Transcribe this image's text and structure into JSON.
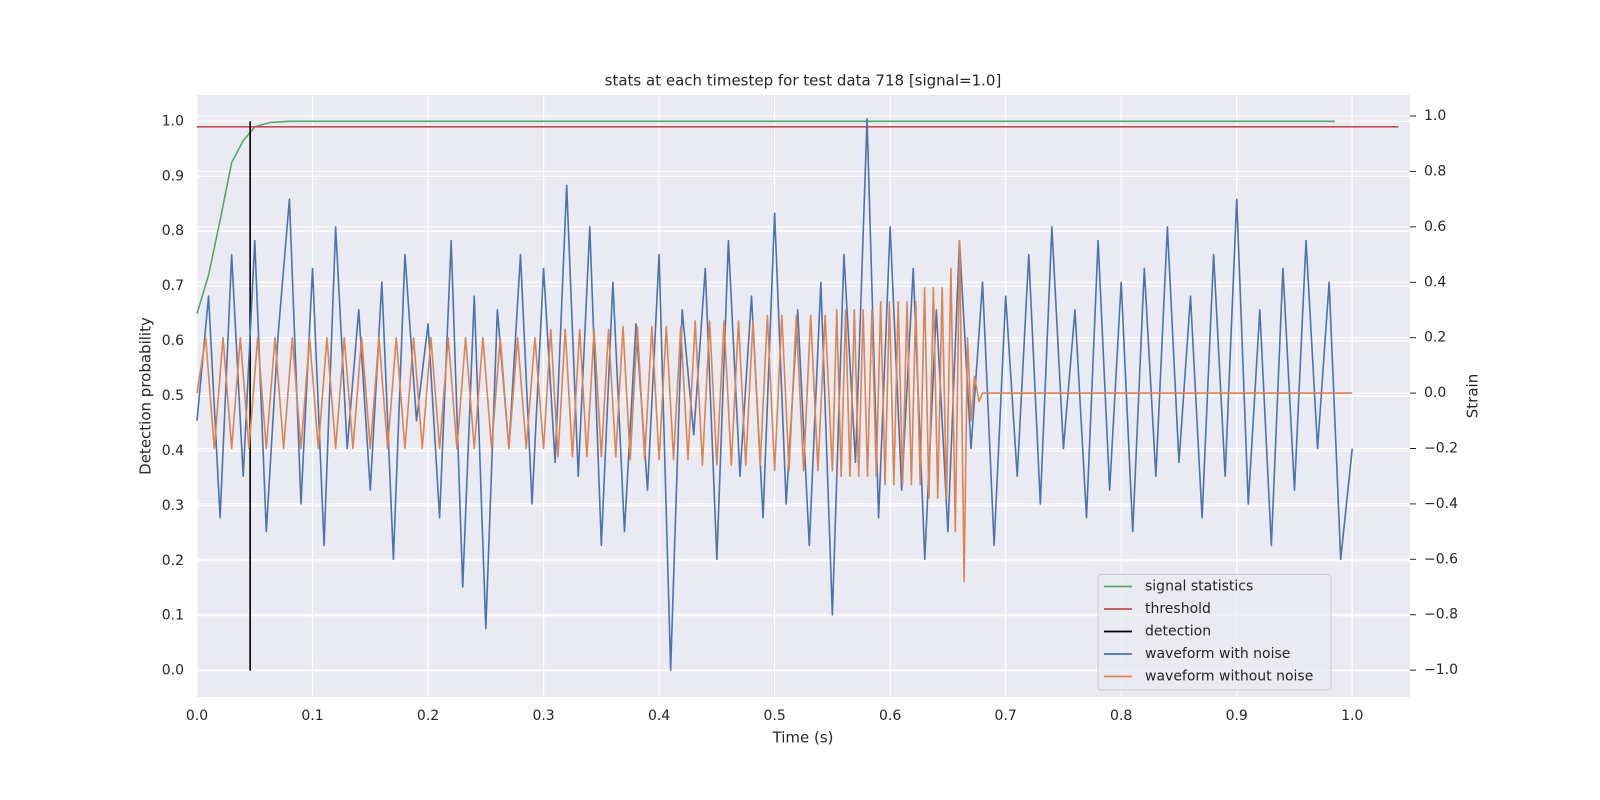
{
  "chart_data": {
    "type": "line",
    "title": "stats at each timestep for test data 718 [signal=1.0]",
    "x_label": "Time (s)",
    "y_label": "Detection probability",
    "y2_label": "Strain",
    "xlim": [
      0,
      1.05
    ],
    "xticks": [
      {
        "value": 0,
        "label": "0.0"
      },
      0.1,
      0.2,
      0.3,
      0.4,
      0.5,
      0.6,
      0.7,
      0.8,
      0.9,
      {
        "value": 1,
        "label": "1.0"
      }
    ],
    "ylim": [
      -0.048,
      1.048
    ],
    "yticks": [
      {
        "value": 0,
        "label": "0.0"
      },
      0.1,
      0.2,
      0.3,
      0.4,
      0.5,
      0.6,
      0.7,
      0.8,
      0.9,
      {
        "value": 1,
        "label": "1.0"
      }
    ],
    "y2lim": [
      -1.097,
      1.076
    ],
    "y2ticks": [
      {
        "value": -1,
        "label": "−1.0"
      },
      {
        "value": -0.8,
        "label": "−0.8"
      },
      {
        "value": -0.6,
        "label": "−0.6"
      },
      {
        "value": -0.4,
        "label": "−0.4"
      },
      {
        "value": -0.2,
        "label": "−0.2"
      },
      {
        "value": 0,
        "label": "0.0"
      },
      0.2,
      0.4,
      0.6,
      0.8,
      {
        "value": 1,
        "label": "1.0"
      }
    ],
    "grid": true,
    "legend": "lower right",
    "series": [
      {
        "name": "signal statistics",
        "color": "#55a868",
        "axis": "y",
        "x": [
          0,
          0.01,
          0.02,
          0.03,
          0.04,
          0.05,
          0.063,
          0.08,
          0.985
        ],
        "values": [
          0.65,
          0.72,
          0.82,
          0.925,
          0.965,
          0.99,
          0.998,
          1.0,
          1.0
        ]
      },
      {
        "name": "threshold",
        "color": "#c44e52",
        "axis": "y",
        "x": [
          0,
          1.04
        ],
        "values": [
          0.99,
          0.99
        ]
      },
      {
        "name": "detection",
        "color": "#000000",
        "axis": "y",
        "x": [
          0.046,
          0.046
        ],
        "values": [
          0,
          1
        ]
      },
      {
        "name": "waveform with noise",
        "color": "#4c72b0",
        "axis": "y2",
        "x": [
          0,
          0.01,
          0.02,
          0.03,
          0.04,
          0.05,
          0.06,
          0.07,
          0.08,
          0.09,
          0.1,
          0.11,
          0.12,
          0.13,
          0.14,
          0.15,
          0.16,
          0.17,
          0.18,
          0.19,
          0.2,
          0.21,
          0.22,
          0.23,
          0.24,
          0.25,
          0.26,
          0.27,
          0.28,
          0.29,
          0.3,
          0.31,
          0.32,
          0.33,
          0.34,
          0.35,
          0.36,
          0.37,
          0.38,
          0.39,
          0.4,
          0.41,
          0.42,
          0.43,
          0.44,
          0.45,
          0.46,
          0.47,
          0.48,
          0.49,
          0.5,
          0.51,
          0.52,
          0.53,
          0.54,
          0.55,
          0.56,
          0.57,
          0.58,
          0.59,
          0.6,
          0.61,
          0.62,
          0.63,
          0.64,
          0.65,
          0.66,
          0.67,
          0.68,
          0.69,
          0.7,
          0.71,
          0.72,
          0.73,
          0.74,
          0.75,
          0.76,
          0.77,
          0.78,
          0.79,
          0.8,
          0.81,
          0.82,
          0.83,
          0.84,
          0.85,
          0.86,
          0.87,
          0.88,
          0.89,
          0.9,
          0.91,
          0.92,
          0.93,
          0.94,
          0.95,
          0.96,
          0.97,
          0.98,
          0.99,
          1.0
        ],
        "values": [
          -0.1,
          0.35,
          -0.45,
          0.5,
          -0.3,
          0.55,
          -0.5,
          0.2,
          0.7,
          -0.4,
          0.45,
          -0.55,
          0.6,
          -0.2,
          0.3,
          -0.35,
          0.4,
          -0.6,
          0.5,
          -0.1,
          0.25,
          -0.45,
          0.55,
          -0.7,
          0.35,
          -0.85,
          0.3,
          -0.2,
          0.5,
          -0.4,
          0.45,
          -0.25,
          0.75,
          -0.3,
          0.6,
          -0.55,
          0.4,
          -0.5,
          0.25,
          -0.35,
          0.5,
          -1.0,
          0.3,
          -0.15,
          0.45,
          -0.6,
          0.55,
          -0.3,
          0.35,
          -0.45,
          0.65,
          -0.4,
          0.3,
          -0.55,
          0.4,
          -0.8,
          0.5,
          -0.25,
          0.99,
          -0.45,
          0.6,
          -0.35,
          0.45,
          -0.6,
          0.3,
          -0.5,
          0.55,
          -0.2,
          0.4,
          -0.55,
          0.35,
          -0.3,
          0.5,
          -0.4,
          0.6,
          -0.2,
          0.3,
          -0.45,
          0.55,
          -0.35,
          0.4,
          -0.5,
          0.45,
          -0.3,
          0.6,
          -0.25,
          0.35,
          -0.45,
          0.5,
          -0.3,
          0.7,
          -0.4,
          0.3,
          -0.55,
          0.45,
          -0.35,
          0.55,
          -0.2,
          0.4,
          -0.6,
          -0.2
        ]
      },
      {
        "name": "waveform without noise",
        "color": "#dd8452",
        "axis": "y2",
        "x": [
          0,
          0.0075,
          0.015,
          0.0225,
          0.03,
          0.0375,
          0.045,
          0.0525,
          0.06,
          0.0675,
          0.075,
          0.0825,
          0.09,
          0.0975,
          0.105,
          0.1125,
          0.12,
          0.1275,
          0.135,
          0.1425,
          0.15,
          0.1575,
          0.165,
          0.1725,
          0.18,
          0.1875,
          0.195,
          0.2025,
          0.21,
          0.2175,
          0.225,
          0.2325,
          0.24,
          0.2475,
          0.255,
          0.2625,
          0.27,
          0.2775,
          0.285,
          0.2925,
          0.3,
          0.30625,
          0.3125,
          0.31875,
          0.325,
          0.33125,
          0.3375,
          0.34375,
          0.35,
          0.35625,
          0.3625,
          0.36875,
          0.375,
          0.38125,
          0.3875,
          0.39375,
          0.4,
          0.40625,
          0.4125,
          0.41875,
          0.425,
          0.43125,
          0.4375,
          0.44375,
          0.45,
          0.45625,
          0.4625,
          0.46875,
          0.475,
          0.48125,
          0.4875,
          0.49375,
          0.5,
          0.50625,
          0.5125,
          0.51875,
          0.525,
          0.53125,
          0.5375,
          0.54375,
          0.55,
          0.5538,
          0.5576,
          0.5614,
          0.5652,
          0.569,
          0.5728,
          0.5766,
          0.5804,
          0.5842,
          0.588,
          0.5918,
          0.5956,
          0.5994,
          0.6032,
          0.607,
          0.6108,
          0.6146,
          0.6184,
          0.6222,
          0.626,
          0.6298,
          0.6336,
          0.6374,
          0.6412,
          0.645,
          0.6488,
          0.6526,
          0.6564,
          0.6602,
          0.664,
          0.667,
          0.67,
          0.673,
          0.677,
          0.68,
          1.0
        ],
        "values": [
          0,
          0.2,
          -0.2,
          0.2,
          -0.2,
          0.2,
          -0.2,
          0.2,
          -0.2,
          0.2,
          -0.2,
          0.2,
          -0.2,
          0.2,
          -0.2,
          0.2,
          -0.2,
          0.2,
          -0.2,
          0.2,
          -0.2,
          0.2,
          -0.2,
          0.2,
          -0.2,
          0.2,
          -0.2,
          0.2,
          -0.2,
          0.2,
          -0.2,
          0.2,
          -0.2,
          0.2,
          -0.2,
          0.2,
          -0.2,
          0.2,
          -0.2,
          0.2,
          -0.2,
          0.23,
          -0.23,
          0.23,
          -0.23,
          0.23,
          -0.23,
          0.23,
          -0.23,
          0.23,
          -0.23,
          0.24,
          -0.24,
          0.24,
          -0.24,
          0.24,
          -0.24,
          0.24,
          -0.24,
          0.24,
          -0.24,
          0.26,
          -0.26,
          0.26,
          -0.26,
          0.26,
          -0.26,
          0.26,
          -0.26,
          0.26,
          -0.26,
          0.28,
          -0.28,
          0.28,
          -0.28,
          0.28,
          -0.28,
          0.28,
          -0.28,
          0.28,
          -0.28,
          0.3,
          -0.3,
          0.3,
          -0.3,
          0.3,
          -0.3,
          0.3,
          -0.3,
          0.3,
          -0.3,
          0.33,
          -0.33,
          0.33,
          -0.33,
          0.33,
          -0.33,
          0.33,
          -0.33,
          0.33,
          -0.33,
          0.38,
          -0.38,
          0.38,
          -0.38,
          0.38,
          -0.38,
          0.45,
          -0.5,
          0.55,
          -0.68,
          0.2,
          -0.1,
          0.06,
          -0.03,
          0,
          0
        ]
      }
    ]
  }
}
